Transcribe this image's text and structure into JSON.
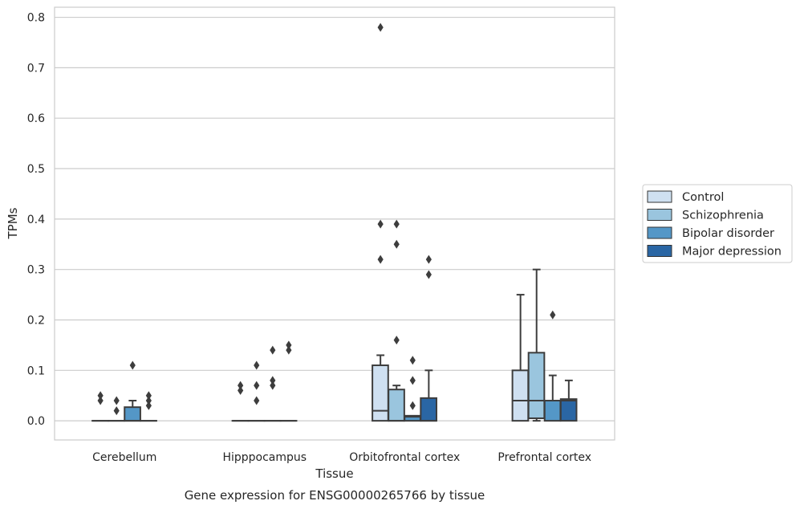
{
  "chart_data": {
    "type": "box",
    "title": "",
    "caption": "Gene expression for ENSG00000265766 by tissue",
    "xlabel": "Tissue",
    "ylabel": "TPMs",
    "ylim": [
      -0.038,
      0.82
    ],
    "yticks": [
      0.0,
      0.1,
      0.2,
      0.3,
      0.4,
      0.5,
      0.6,
      0.7,
      0.8
    ],
    "grid": true,
    "legend_position": "right",
    "categories": [
      "Cerebellum",
      "Hipppocampus",
      "Orbitofrontal cortex",
      "Prefrontal cortex"
    ],
    "series": [
      {
        "name": "Control",
        "color": "#cfe0f1",
        "boxes": [
          {
            "q1": 0,
            "median": 0,
            "q3": 0,
            "whislo": 0,
            "whishi": 0,
            "fliers": [
              0.05,
              0.04
            ]
          },
          {
            "q1": 0,
            "median": 0,
            "q3": 0,
            "whislo": 0,
            "whishi": 0,
            "fliers": [
              0.07,
              0.06
            ]
          },
          {
            "q1": 0,
            "median": 0.02,
            "q3": 0.11,
            "whislo": 0,
            "whishi": 0.13,
            "fliers": [
              0.78,
              0.39,
              0.32
            ]
          },
          {
            "q1": 0,
            "median": 0.04,
            "q3": 0.1,
            "whislo": 0,
            "whishi": 0.25,
            "fliers": []
          }
        ]
      },
      {
        "name": "Schizophrenia",
        "color": "#9ac5de",
        "boxes": [
          {
            "q1": 0,
            "median": 0,
            "q3": 0,
            "whislo": 0,
            "whishi": 0,
            "fliers": [
              0.04,
              0.02
            ]
          },
          {
            "q1": 0,
            "median": 0,
            "q3": 0,
            "whislo": 0,
            "whishi": 0,
            "fliers": [
              0.11,
              0.07,
              0.04
            ]
          },
          {
            "q1": 0,
            "median": 0.0,
            "q3": 0.062,
            "whislo": 0,
            "whishi": 0.07,
            "fliers": [
              0.39,
              0.35,
              0.16
            ]
          },
          {
            "q1": 0.005,
            "median": 0.04,
            "q3": 0.135,
            "whislo": 0,
            "whishi": 0.3,
            "fliers": []
          }
        ]
      },
      {
        "name": "Bipolar disorder",
        "color": "#5497c7",
        "boxes": [
          {
            "q1": 0,
            "median": 0,
            "q3": 0.027,
            "whislo": 0,
            "whishi": 0.04,
            "fliers": [
              0.11
            ]
          },
          {
            "q1": 0,
            "median": 0,
            "q3": 0,
            "whislo": 0,
            "whishi": 0,
            "fliers": [
              0.14,
              0.08,
              0.07
            ]
          },
          {
            "q1": 0,
            "median": 0.008,
            "q3": 0.01,
            "whislo": 0,
            "whishi": 0.01,
            "fliers": [
              0.12,
              0.08,
              0.03
            ]
          },
          {
            "q1": 0,
            "median": 0.04,
            "q3": 0.04,
            "whislo": 0,
            "whishi": 0.09,
            "fliers": [
              0.21
            ]
          }
        ]
      },
      {
        "name": "Major depression",
        "color": "#2a66a4",
        "boxes": [
          {
            "q1": 0,
            "median": 0,
            "q3": 0,
            "whislo": 0,
            "whishi": 0,
            "fliers": [
              0.05,
              0.04,
              0.03
            ]
          },
          {
            "q1": 0,
            "median": 0,
            "q3": 0,
            "whislo": 0,
            "whishi": 0,
            "fliers": [
              0.15,
              0.14
            ]
          },
          {
            "q1": 0,
            "median": 0,
            "q3": 0.045,
            "whislo": 0,
            "whishi": 0.1,
            "fliers": [
              0.32,
              0.29
            ]
          },
          {
            "q1": 0,
            "median": 0.04,
            "q3": 0.043,
            "whislo": 0,
            "whishi": 0.08,
            "fliers": []
          }
        ]
      }
    ]
  }
}
